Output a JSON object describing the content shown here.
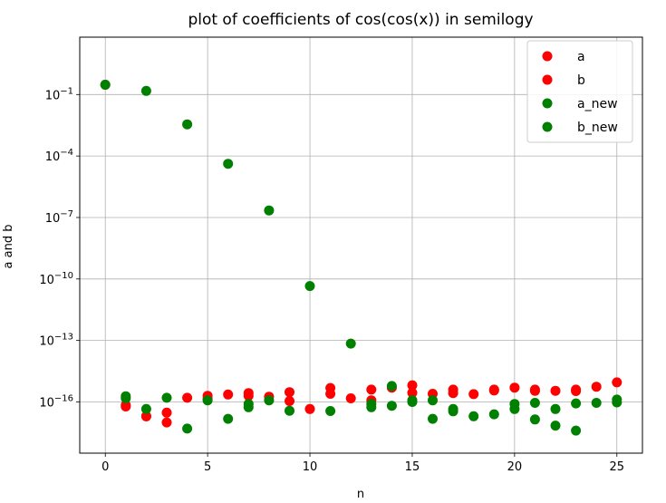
{
  "chart_data": {
    "type": "scatter",
    "title": "plot of coefficients of cos(cos(x)) in semilogy",
    "xlabel": "n",
    "ylabel": "a and b",
    "y_scale": "log",
    "xlim": [
      -1.25,
      26.25
    ],
    "ylim_log10": [
      -18.5,
      1.8
    ],
    "x_ticks": [
      0,
      5,
      10,
      15,
      20,
      25
    ],
    "y_ticks": [
      {
        "exp": -1,
        "base": "10",
        "power": "−1"
      },
      {
        "exp": -4,
        "base": "10",
        "power": "−4"
      },
      {
        "exp": -7,
        "base": "10",
        "power": "−7"
      },
      {
        "exp": -10,
        "base": "10",
        "power": "−10"
      },
      {
        "exp": -13,
        "base": "10",
        "power": "−13"
      },
      {
        "exp": -16,
        "base": "10",
        "power": "−16"
      }
    ],
    "grid": true,
    "legend_position": "top-right",
    "series": [
      {
        "name": "a",
        "color": "#ff0000",
        "x": [
          0,
          1,
          2,
          3,
          4,
          5,
          6,
          7,
          8,
          9,
          10,
          11,
          12,
          13,
          14,
          15,
          16,
          17,
          18,
          19,
          20,
          21,
          22,
          23,
          24,
          25
        ],
        "y": [
          0.3,
          6e-17,
          2e-17,
          1e-17,
          1.6e-16,
          2e-16,
          2.3e-16,
          2.7e-16,
          1.8e-16,
          3e-16,
          4.5e-17,
          4.8e-16,
          1.5e-16,
          4e-16,
          5e-16,
          6.5e-16,
          2.5e-16,
          4e-16,
          2.4e-16,
          4e-16,
          5e-16,
          4e-16,
          3.5e-16,
          4e-16,
          5.5e-16,
          9e-16
        ]
      },
      {
        "name": "b",
        "color": "#ff0000",
        "x": [
          1,
          2,
          3,
          5,
          7,
          9,
          11,
          13,
          15,
          17,
          19,
          21,
          23
        ],
        "y": [
          7e-17,
          2e-17,
          3e-17,
          1.4e-16,
          2e-16,
          1.1e-16,
          2.5e-16,
          1.2e-16,
          2.8e-16,
          2.7e-16,
          3.6e-16,
          3.5e-16,
          3.4e-16
        ]
      },
      {
        "name": "a_new",
        "color": "#008000",
        "x": [
          0,
          1,
          2,
          3,
          4,
          5,
          6,
          7,
          8,
          9,
          10,
          11,
          12,
          13,
          14,
          15,
          16,
          17,
          18,
          19,
          20,
          21,
          22,
          23,
          24,
          25
        ],
        "y": [
          0.3,
          1.9e-16,
          4.5e-17,
          1.6e-16,
          5e-18,
          1.2e-16,
          1.5e-17,
          5.5e-17,
          2.2e-07,
          3.7e-17,
          4.5e-11,
          3.6e-17,
          7e-14,
          5.5e-17,
          6e-16,
          1e-16,
          1.5e-17,
          3.5e-17,
          2e-17,
          2.5e-17,
          4.5e-17,
          1.4e-17,
          7e-18,
          4e-18,
          9e-17,
          1.3e-16
        ]
      },
      {
        "name": "b_new",
        "color": "#008000",
        "x": [
          1,
          2,
          4,
          6,
          7,
          8,
          13,
          14,
          15,
          16,
          17,
          20,
          21,
          22,
          23,
          25
        ],
        "y": [
          1.5e-16,
          0.15,
          0.0035,
          4.2e-05,
          8e-17,
          1.2e-16,
          8e-17,
          6.5e-17,
          1.2e-16,
          1.2e-16,
          4.5e-17,
          8e-17,
          9e-17,
          4.5e-17,
          8.5e-17,
          9.5e-17
        ]
      }
    ]
  }
}
